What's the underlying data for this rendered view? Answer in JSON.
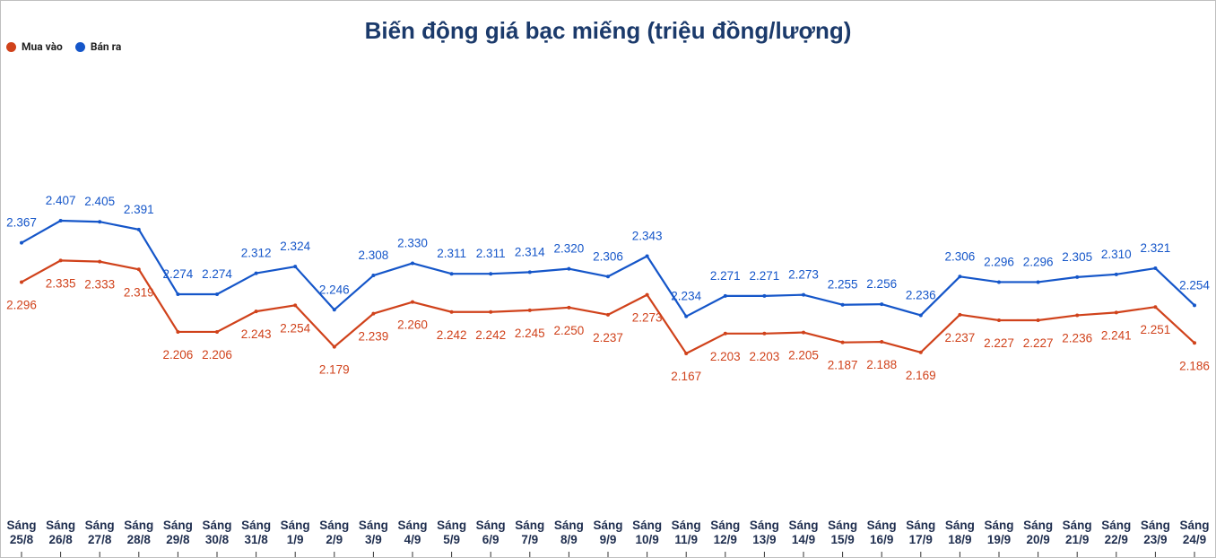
{
  "chart_data": {
    "type": "line",
    "title": "Biến động giá bạc miếng (triệu đồng/lượng)",
    "categories": [
      "Sáng 25/8",
      "Sáng 26/8",
      "Sáng 27/8",
      "Sáng 28/8",
      "Sáng 29/8",
      "Sáng 30/8",
      "Sáng 31/8",
      "Sáng 1/9",
      "Sáng 2/9",
      "Sáng 3/9",
      "Sáng 4/9",
      "Sáng 5/9",
      "Sáng 6/9",
      "Sáng 7/9",
      "Sáng 8/9",
      "Sáng 9/9",
      "Sáng 10/9",
      "Sáng 11/9",
      "Sáng 12/9",
      "Sáng 13/9",
      "Sáng 14/9",
      "Sáng 15/9",
      "Sáng 16/9",
      "Sáng 17/9",
      "Sáng 18/9",
      "Sáng 19/9",
      "Sáng 20/9",
      "Sáng 21/9",
      "Sáng 22/9",
      "Sáng 23/9",
      "Sáng 24/9"
    ],
    "series": [
      {
        "name": "Mua vào",
        "color": "#d0421b",
        "values": [
          2.296,
          2.335,
          2.333,
          2.319,
          2.206,
          2.206,
          2.243,
          2.254,
          2.179,
          2.239,
          2.26,
          2.242,
          2.242,
          2.245,
          2.25,
          2.237,
          2.273,
          2.167,
          2.203,
          2.203,
          2.205,
          2.187,
          2.188,
          2.169,
          2.237,
          2.227,
          2.227,
          2.236,
          2.241,
          2.251,
          2.186
        ],
        "value_labels": [
          "2.296",
          "2.335",
          "2.333",
          "2.319",
          "2.206",
          "2.206",
          "2.243",
          "2.254",
          "2.179",
          "2.239",
          "2.260",
          "2.242",
          "2.242",
          "2.245",
          "2.250",
          "2.237",
          "2.273",
          "2.167",
          "2.203",
          "2.203",
          "2.205",
          "2.187",
          "2.188",
          "2.169",
          "2.237",
          "2.227",
          "2.227",
          "2.236",
          "2.241",
          "2.251",
          "2.186"
        ]
      },
      {
        "name": "Bán ra",
        "color": "#1556c9",
        "values": [
          2.367,
          2.407,
          2.405,
          2.391,
          2.274,
          2.274,
          2.312,
          2.324,
          2.246,
          2.308,
          2.33,
          2.311,
          2.311,
          2.314,
          2.32,
          2.306,
          2.343,
          2.234,
          2.271,
          2.271,
          2.273,
          2.255,
          2.256,
          2.236,
          2.306,
          2.296,
          2.296,
          2.305,
          2.31,
          2.321,
          2.254
        ],
        "value_labels": [
          "2.367",
          "2.407",
          "2.405",
          "2.391",
          "2.274",
          "2.274",
          "2.312",
          "2.324",
          "2.246",
          "2.308",
          "2.330",
          "2.311",
          "2.311",
          "2.314",
          "2.320",
          "2.306",
          "2.343",
          "2.234",
          "2.271",
          "2.271",
          "2.273",
          "2.255",
          "2.256",
          "2.236",
          "2.306",
          "2.296",
          "2.296",
          "2.305",
          "2.310",
          "2.321",
          "2.254"
        ]
      }
    ]
  }
}
